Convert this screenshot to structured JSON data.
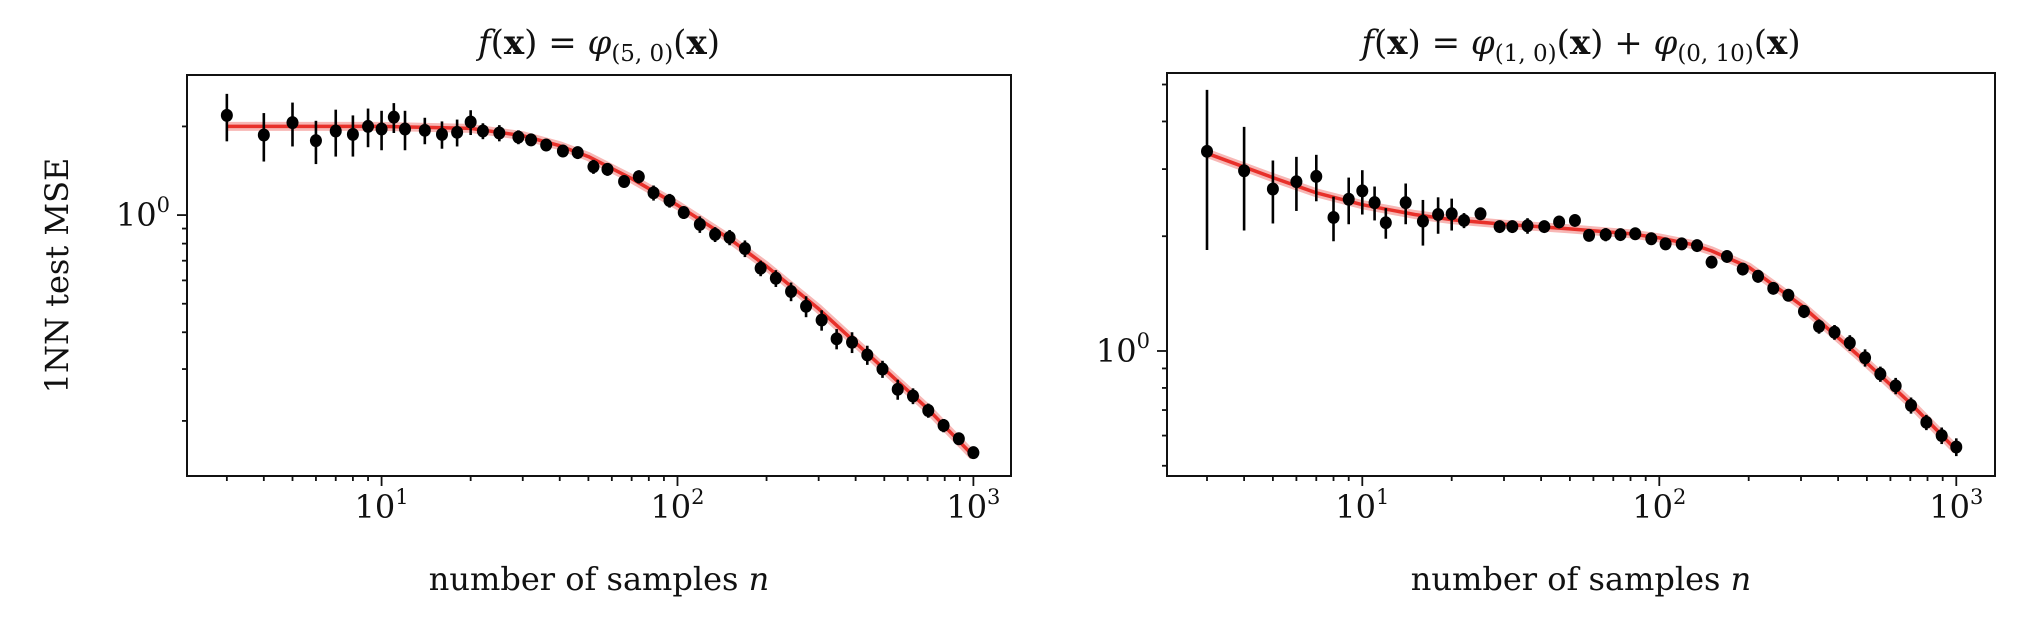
{
  "chart_data": [
    {
      "type": "scatter",
      "title_parts": [
        {
          "t": "f",
          "i": true
        },
        {
          "t": "("
        },
        {
          "t": "x",
          "b": true
        },
        {
          "t": ") = "
        },
        {
          "t": "φ",
          "i": true
        },
        {
          "t": "(5, 0)",
          "sub": true
        },
        {
          "t": "("
        },
        {
          "t": "x",
          "b": true
        },
        {
          "t": ")"
        }
      ],
      "xlabel": "number of samples ",
      "xlabel_var": "n",
      "ylabel": "1NN test MSE",
      "xscale": "log",
      "yscale": "log",
      "xlim": [
        2.2,
        1340
      ],
      "ylim": [
        0.13,
        2.99
      ],
      "x_ticks": [
        {
          "base": "10",
          "exp": "1",
          "v": 10
        },
        {
          "base": "10",
          "exp": "2",
          "v": 100
        },
        {
          "base": "10",
          "exp": "3",
          "v": 1000
        }
      ],
      "y_ticks": [
        {
          "base": "10",
          "exp": "0",
          "v": 1
        }
      ],
      "series": [
        {
          "name": "1NN test MSE",
          "kind": "errorbar",
          "color": "#000000",
          "x": [
            3,
            4,
            5,
            6,
            7,
            8,
            9,
            10,
            11,
            12,
            14,
            16,
            18,
            20,
            22,
            25,
            29,
            32,
            36,
            41,
            46,
            52,
            58,
            66,
            74,
            83,
            94,
            105,
            119,
            134,
            150,
            169,
            191,
            215,
            242,
            272,
            307,
            345,
            389,
            438,
            493,
            555,
            625,
            704,
            793,
            893,
            1000
          ],
          "y": [
            2.18,
            1.87,
            2.06,
            1.79,
            1.93,
            1.88,
            2.0,
            1.96,
            2.15,
            1.96,
            1.94,
            1.88,
            1.91,
            2.07,
            1.93,
            1.9,
            1.84,
            1.8,
            1.73,
            1.65,
            1.63,
            1.46,
            1.43,
            1.3,
            1.35,
            1.19,
            1.12,
            1.02,
            0.93,
            0.86,
            0.84,
            0.77,
            0.66,
            0.61,
            0.55,
            0.49,
            0.44,
            0.38,
            0.37,
            0.335,
            0.3,
            0.256,
            0.243,
            0.217,
            0.193,
            0.174,
            0.156
          ],
          "yerr": [
            0.4,
            0.35,
            0.35,
            0.3,
            0.35,
            0.3,
            0.3,
            0.3,
            0.25,
            0.3,
            0.2,
            0.2,
            0.2,
            0.2,
            0.12,
            0.12,
            0.1,
            0.08,
            0.08,
            0.07,
            0.08,
            0.08,
            0.07,
            0.06,
            0.07,
            0.07,
            0.06,
            0.05,
            0.06,
            0.05,
            0.05,
            0.05,
            0.04,
            0.04,
            0.04,
            0.04,
            0.035,
            0.03,
            0.03,
            0.025,
            0.02,
            0.02,
            0.015,
            0.012,
            0.01,
            0.008,
            0.006
          ]
        },
        {
          "name": "fit",
          "kind": "line",
          "color": "#e8302a",
          "x": [
            3,
            10,
            20,
            30,
            40,
            50,
            70,
            100,
            150,
            200,
            300,
            500,
            700,
            1000
          ],
          "y": [
            2.0,
            2.0,
            1.97,
            1.86,
            1.72,
            1.58,
            1.33,
            1.08,
            0.83,
            0.67,
            0.48,
            0.3,
            0.22,
            0.152
          ]
        }
      ]
    },
    {
      "type": "scatter",
      "title_parts": [
        {
          "t": "f",
          "i": true
        },
        {
          "t": "("
        },
        {
          "t": "x",
          "b": true
        },
        {
          "t": ") = "
        },
        {
          "t": "φ",
          "i": true
        },
        {
          "t": "(1, 0)",
          "sub": true
        },
        {
          "t": "("
        },
        {
          "t": "x",
          "b": true
        },
        {
          "t": ") + "
        },
        {
          "t": "φ",
          "i": true
        },
        {
          "t": "(0, 10)",
          "sub": true
        },
        {
          "t": "("
        },
        {
          "t": "x",
          "b": true
        },
        {
          "t": ")"
        }
      ],
      "xlabel": "number of samples ",
      "xlabel_var": "n",
      "ylabel": "",
      "xscale": "log",
      "yscale": "log",
      "xlim": [
        2.2,
        1350
      ],
      "ylim": [
        0.47,
        5.36
      ],
      "x_ticks": [
        {
          "base": "10",
          "exp": "1",
          "v": 10
        },
        {
          "base": "10",
          "exp": "2",
          "v": 100
        },
        {
          "base": "10",
          "exp": "3",
          "v": 1000
        }
      ],
      "y_ticks": [
        {
          "base": "10",
          "exp": "0",
          "v": 1
        }
      ],
      "series": [
        {
          "name": "1NN test MSE",
          "kind": "errorbar",
          "color": "#000000",
          "x": [
            3,
            4,
            5,
            6,
            7,
            8,
            9,
            10,
            11,
            12,
            14,
            16,
            18,
            20,
            22,
            25,
            29,
            32,
            36,
            41,
            46,
            52,
            58,
            66,
            74,
            83,
            94,
            105,
            119,
            134,
            150,
            169,
            191,
            215,
            242,
            272,
            307,
            345,
            389,
            438,
            493,
            555,
            625,
            704,
            793,
            893,
            1000
          ],
          "y": [
            3.34,
            2.97,
            2.66,
            2.78,
            2.87,
            2.24,
            2.5,
            2.63,
            2.45,
            2.17,
            2.45,
            2.19,
            2.28,
            2.29,
            2.2,
            2.29,
            2.12,
            2.12,
            2.13,
            2.12,
            2.18,
            2.2,
            2.01,
            2.02,
            2.02,
            2.03,
            1.97,
            1.91,
            1.91,
            1.89,
            1.71,
            1.77,
            1.64,
            1.57,
            1.46,
            1.4,
            1.27,
            1.16,
            1.12,
            1.05,
            0.96,
            0.87,
            0.81,
            0.72,
            0.65,
            0.6,
            0.56
          ],
          "yerr": [
            1.5,
            0.9,
            0.5,
            0.45,
            0.4,
            0.3,
            0.35,
            0.35,
            0.25,
            0.2,
            0.3,
            0.3,
            0.25,
            0.22,
            0.1,
            0.08,
            0.06,
            0.08,
            0.1,
            0.05,
            0.06,
            0.05,
            0.06,
            0.08,
            0.07,
            0.07,
            0.05,
            0.05,
            0.06,
            0.06,
            0.05,
            0.06,
            0.05,
            0.06,
            0.05,
            0.05,
            0.05,
            0.05,
            0.05,
            0.05,
            0.05,
            0.04,
            0.04,
            0.035,
            0.03,
            0.03,
            0.03
          ]
        },
        {
          "name": "fit",
          "kind": "line",
          "color": "#e8302a",
          "x": [
            3,
            5,
            7,
            10,
            15,
            20,
            30,
            50,
            80,
            100,
            130,
            150,
            200,
            300,
            500,
            700,
            1000
          ],
          "y": [
            3.3,
            2.85,
            2.6,
            2.42,
            2.28,
            2.21,
            2.15,
            2.09,
            2.03,
            1.98,
            1.9,
            1.83,
            1.66,
            1.32,
            0.93,
            0.73,
            0.55
          ]
        }
      ]
    }
  ]
}
